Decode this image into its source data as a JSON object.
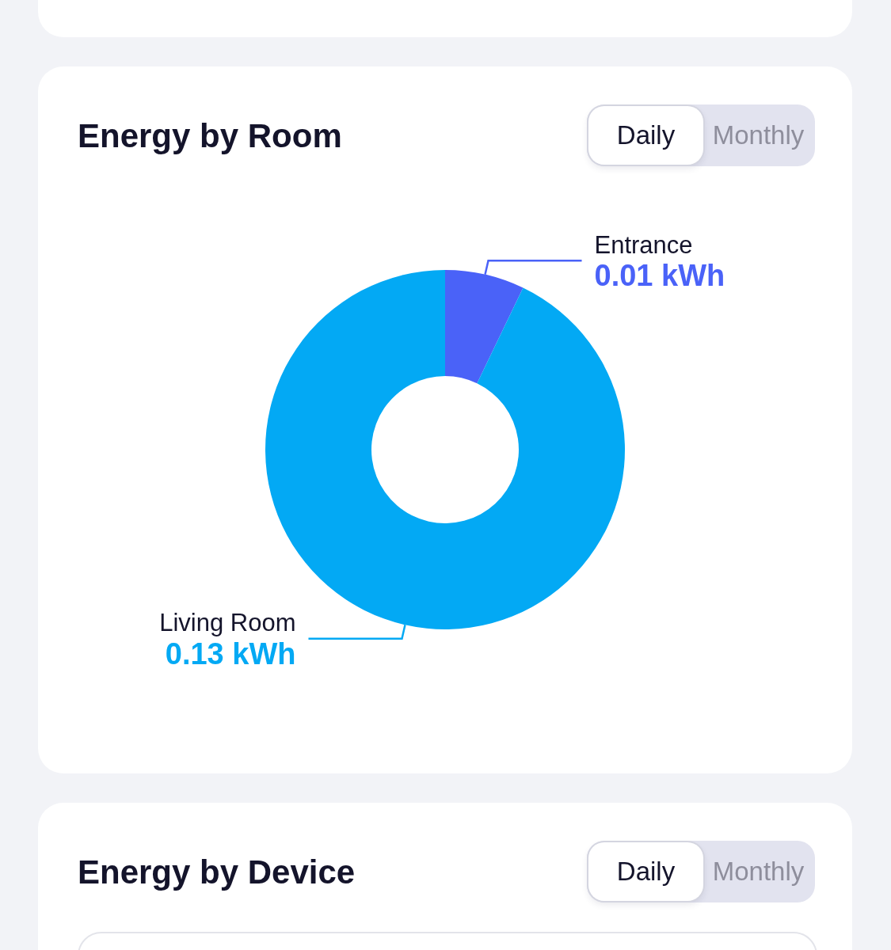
{
  "chart_data": [
    {
      "type": "donut",
      "title": "Energy by Room",
      "annotations": [
        "Daily",
        "Monthly"
      ],
      "categories": [
        "Entrance",
        "Living Room"
      ],
      "values": [
        0.01,
        0.13
      ],
      "value_labels": [
        "0.01 kWh",
        "0.13 kWh"
      ],
      "colors": [
        "#4a62f8",
        "#03a9f4"
      ]
    },
    {
      "type": "other",
      "title": "Energy by Device",
      "annotations": [
        "Daily",
        "Monthly"
      ]
    }
  ]
}
